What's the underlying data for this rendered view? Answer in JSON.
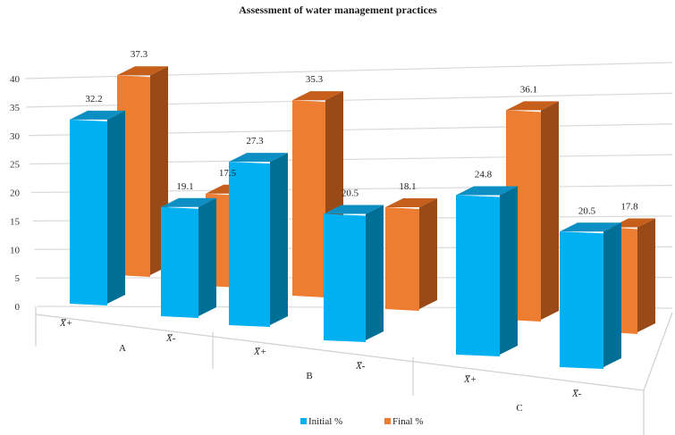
{
  "chart_data": {
    "type": "bar",
    "style": "3d-clustered-column",
    "title": "Assessment of water management practices",
    "xlabel": "",
    "ylabel": "",
    "ylim": [
      0,
      40
    ],
    "yticks": [
      0,
      5,
      10,
      15,
      20,
      25,
      30,
      35,
      40
    ],
    "grid": true,
    "groups": [
      "A",
      "B",
      "C"
    ],
    "subcategories": [
      "X̅+",
      "X̅-"
    ],
    "categories": [
      "A X̅+",
      "A X̅-",
      "B X̅+",
      "B X̅-",
      "C X̅+",
      "C X̅-"
    ],
    "series": [
      {
        "name": "Initial %",
        "color": "#00b0f0",
        "values": [
          32.2,
          19.1,
          27.3,
          20.5,
          24.8,
          20.5
        ],
        "labels": [
          "32.2",
          "19.1",
          "27.3",
          "20.5",
          "24.8",
          "20.5"
        ]
      },
      {
        "name": "Final %",
        "color": "#ed7d31",
        "values": [
          37.3,
          17.5,
          35.3,
          18.1,
          36.1,
          17.8
        ],
        "labels": [
          "37.3",
          "17.5",
          "35.3",
          "18.1",
          "36.1",
          "17.8"
        ]
      }
    ],
    "legend": {
      "placement": "bottom-center",
      "items": [
        "Initial %",
        "Final %"
      ]
    }
  }
}
